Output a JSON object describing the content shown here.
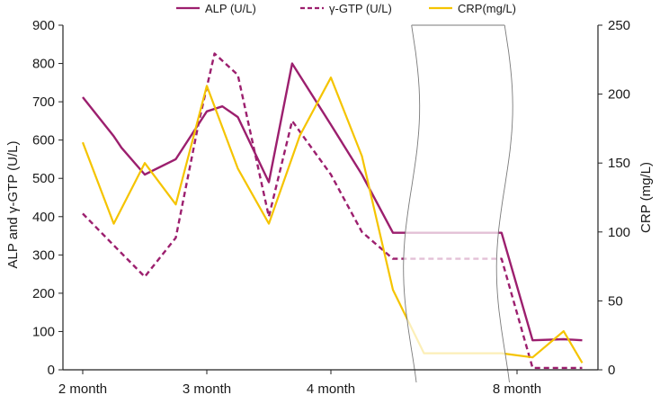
{
  "chart_data": {
    "type": "line",
    "title": "",
    "xlabel": "",
    "ylabel_left": "ALP and γ-GTP (U/L)",
    "ylabel_right": "CRP (mg/L)",
    "ylim_left": [
      0,
      900
    ],
    "ylim_right": [
      0,
      250
    ],
    "yticks_left": [
      "0",
      "100",
      "200",
      "300",
      "400",
      "500",
      "600",
      "700",
      "800",
      "900"
    ],
    "yticks_right": [
      "0",
      "50",
      "100",
      "150",
      "200",
      "250"
    ],
    "x_tick_labels": [
      {
        "label": "2 month",
        "x": 0
      },
      {
        "label": "3 month",
        "x": 4
      },
      {
        "label": "4 month",
        "x": 8
      },
      {
        "label": "8 month",
        "x": 14
      }
    ],
    "x_range": [
      0,
      16
    ],
    "axis_break": {
      "from_x": 10.6,
      "to_x": 13.6,
      "note": "time axis break between 4 month and 8 month"
    },
    "series": [
      {
        "name": "ALP (U/L)",
        "axis": "left",
        "color": "#9c1f6e",
        "dash": "solid",
        "x": [
          0,
          1,
          1.25,
          2,
          3,
          4,
          4.5,
          5,
          6,
          6.75,
          8,
          9,
          10,
          11,
          13.5,
          14.5,
          15.5,
          16.1
        ],
        "y": [
          712,
          610,
          580,
          510,
          550,
          675,
          688,
          660,
          490,
          800,
          640,
          510,
          358,
          358,
          358,
          77,
          80,
          77
        ]
      },
      {
        "name": "γ-GTP (U/L)",
        "axis": "left",
        "color": "#9c1f6e",
        "dash": "dashed",
        "x": [
          0,
          1,
          2,
          3,
          3.75,
          4.25,
          5,
          6,
          6.75,
          8,
          9,
          10,
          11,
          13.5,
          14.5,
          15.5,
          16.1
        ],
        "y": [
          408,
          325,
          243,
          345,
          650,
          826,
          770,
          400,
          650,
          510,
          360,
          290,
          290,
          290,
          5,
          5,
          5
        ]
      },
      {
        "name": "CRP(mg/L)",
        "axis": "right",
        "color": "#f5c400",
        "dash": "solid",
        "x": [
          0,
          1,
          2,
          3,
          4,
          5,
          6,
          7,
          8,
          9,
          10,
          11,
          13.5,
          14.5,
          15.5,
          16.1
        ],
        "y": [
          165,
          106,
          150,
          120,
          206,
          146,
          106,
          170,
          212,
          155,
          58,
          12,
          12,
          9,
          28,
          5
        ]
      }
    ]
  }
}
